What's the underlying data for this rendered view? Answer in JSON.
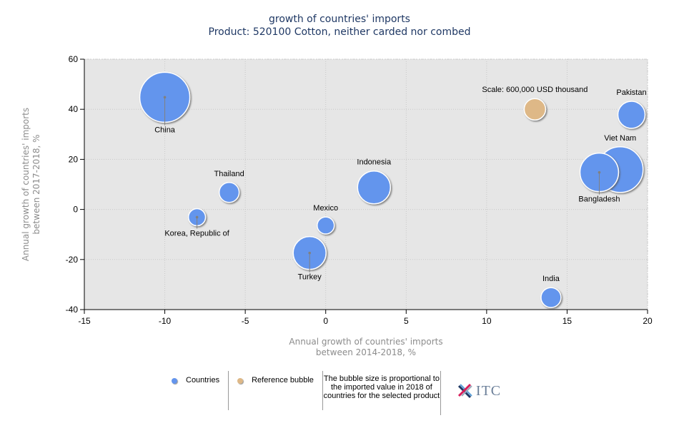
{
  "header": {
    "title": "growth of countries' imports",
    "subtitle": "Product: 520100 Cotton, neither carded nor combed"
  },
  "legend": {
    "countries_label": "Countries",
    "reference_label": "Reference bubble",
    "note": "The bubble size is proportional to the imported value in 2018 of countries for the selected product",
    "logo_text": "ITC"
  },
  "colors": {
    "countries": "#6495ED",
    "reference": "#DEB887",
    "plot_bg": "#E6E6E6",
    "title": "#1F3864",
    "axis_title": "#8C8C8C"
  },
  "chart_data": {
    "type": "scatter",
    "subtype": "bubble",
    "title": "growth of countries' imports",
    "subtitle": "Product: 520100 Cotton, neither carded nor combed",
    "xlabel": "Annual growth of countries' imports between 2014-2018, %",
    "ylabel": "Annual growth of countries' imports between 2017-2018, %",
    "xlim": [
      -15,
      20
    ],
    "ylim": [
      -40,
      60
    ],
    "xticks": [
      -15,
      -10,
      -5,
      0,
      5,
      10,
      15,
      20
    ],
    "yticks": [
      -40,
      -20,
      0,
      20,
      40,
      60
    ],
    "grid": true,
    "size_unit": "USD thousand (2018 imported value, estimated from bubble area)",
    "series": [
      {
        "name": "Countries",
        "color": "#6495ED",
        "points": [
          {
            "label": "China",
            "x": -10,
            "y": 44.8,
            "size": 3270000,
            "label_pos": "below",
            "leader": true
          },
          {
            "label": "Viet Nam",
            "x": 18.3,
            "y": 15.9,
            "size": 2730000,
            "label_pos": "above",
            "leader": false
          },
          {
            "label": "Bangladesh",
            "x": 17,
            "y": 14.8,
            "size": 1940000,
            "label_pos": "below",
            "leader": true
          },
          {
            "label": "Indonesia",
            "x": 3,
            "y": 8.8,
            "size": 1410000,
            "label_pos": "above",
            "leader": false
          },
          {
            "label": "Turkey",
            "x": -1,
            "y": -17.4,
            "size": 1410000,
            "label_pos": "below",
            "leader": true
          },
          {
            "label": "Pakistan",
            "x": 19,
            "y": 37.8,
            "size": 960000,
            "label_pos": "above",
            "leader": false
          },
          {
            "label": "Thailand",
            "x": -6,
            "y": 6.8,
            "size": 520000,
            "label_pos": "above",
            "leader": false
          },
          {
            "label": "India",
            "x": 14,
            "y": -35.2,
            "size": 520000,
            "label_pos": "above",
            "leader": false
          },
          {
            "label": "Korea, Republic of",
            "x": -8,
            "y": -3.1,
            "size": 380000,
            "label_pos": "below",
            "leader": true
          },
          {
            "label": "Mexico",
            "x": 0,
            "y": -6.4,
            "size": 380000,
            "label_pos": "above",
            "leader": false
          }
        ]
      },
      {
        "name": "Reference bubble",
        "color": "#DEB887",
        "points": [
          {
            "label": "Scale: 600,000 USD thousand",
            "x": 13,
            "y": 40,
            "size": 600000,
            "label_pos": "above",
            "leader": false
          }
        ]
      }
    ],
    "legend": [
      "Countries",
      "Reference bubble"
    ],
    "legend_position": "bottom"
  }
}
